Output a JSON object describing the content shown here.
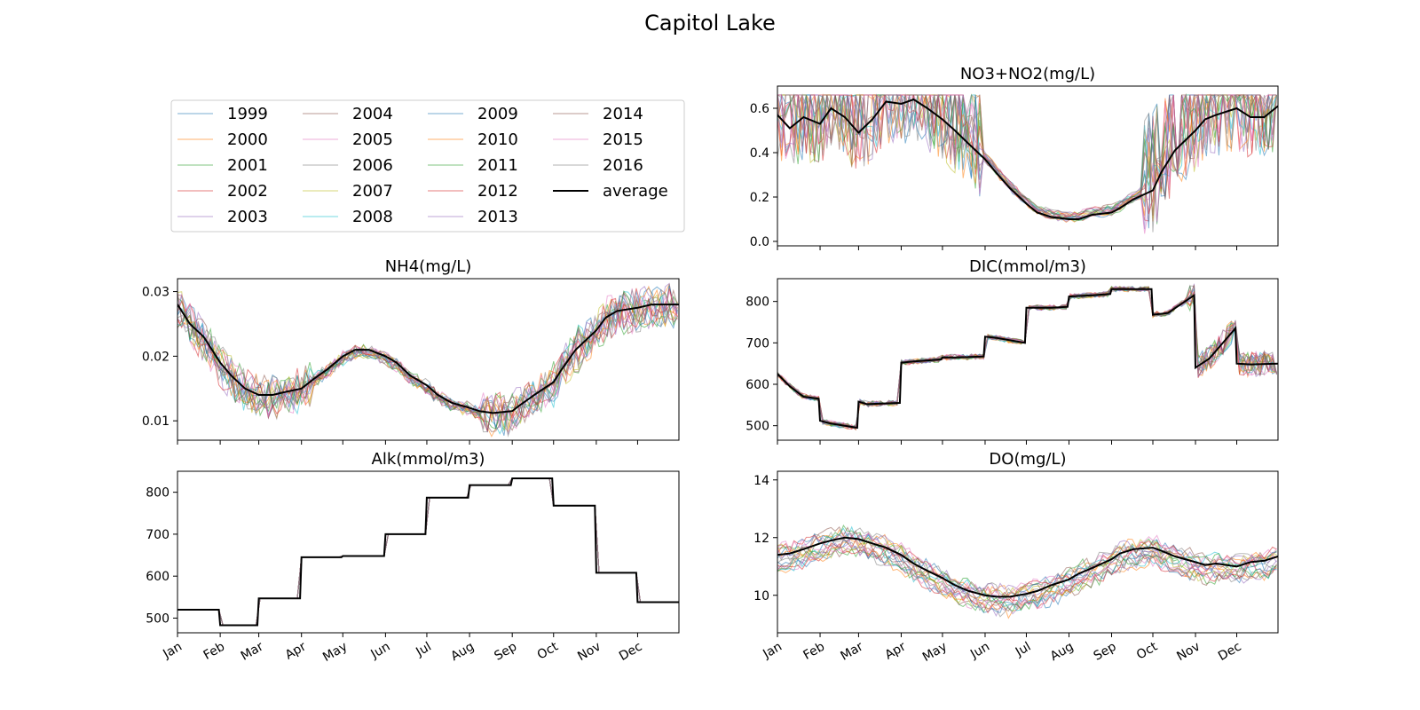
{
  "figure": {
    "title": "Capitol Lake"
  },
  "colors": {
    "years": [
      "#1f77b4",
      "#ff7f0e",
      "#2ca02c",
      "#d62728",
      "#9467bd",
      "#8c564b",
      "#e377c2",
      "#7f7f7f",
      "#bcbd22",
      "#17becf",
      "#1f77b4",
      "#ff7f0e",
      "#2ca02c",
      "#d62728",
      "#9467bd",
      "#8c564b",
      "#e377c2",
      "#7f7f7f"
    ],
    "average": "#000000"
  },
  "legend": {
    "entries": [
      "1999",
      "2000",
      "2001",
      "2002",
      "2003",
      "2004",
      "2005",
      "2006",
      "2007",
      "2008",
      "2009",
      "2010",
      "2011",
      "2012",
      "2013",
      "2014",
      "2015",
      "2016",
      "average"
    ],
    "columns": 4
  },
  "chart_data": [
    {
      "id": "no3",
      "type": "line",
      "title": "NO3+NO2(mg/L)",
      "xlabel": "",
      "ylabel": "",
      "ylim": [
        -0.02,
        0.7
      ],
      "yticks": [
        0.0,
        0.2,
        0.4,
        0.6
      ],
      "ytick_labels": [
        "0.0",
        "0.2",
        "0.4",
        "0.6"
      ],
      "xticks": [],
      "xtick_labels": [],
      "average": {
        "name": "average",
        "x": [
          1,
          10,
          20,
          32,
          40,
          50,
          60,
          70,
          80,
          91,
          100,
          110,
          121,
          130,
          140,
          152,
          160,
          170,
          182,
          190,
          200,
          213,
          220,
          230,
          244,
          250,
          260,
          274,
          280,
          290,
          305,
          312,
          320,
          335,
          345,
          355,
          365
        ],
        "y": [
          0.57,
          0.51,
          0.56,
          0.53,
          0.6,
          0.56,
          0.49,
          0.55,
          0.63,
          0.62,
          0.64,
          0.6,
          0.55,
          0.5,
          0.44,
          0.37,
          0.31,
          0.24,
          0.17,
          0.13,
          0.11,
          0.1,
          0.1,
          0.12,
          0.13,
          0.15,
          0.19,
          0.23,
          0.31,
          0.41,
          0.5,
          0.55,
          0.57,
          0.6,
          0.56,
          0.56,
          0.61
        ]
      }
    },
    {
      "id": "nh4",
      "type": "line",
      "title": "NH4(mg/L)",
      "xlabel": "",
      "ylabel": "",
      "ylim": [
        0.007,
        0.032
      ],
      "yticks": [
        0.01,
        0.02,
        0.03
      ],
      "ytick_labels": [
        "0.01",
        "0.02",
        "0.03"
      ],
      "xticks": [],
      "xtick_labels": [],
      "average": {
        "name": "average",
        "x": [
          1,
          10,
          20,
          32,
          40,
          50,
          60,
          70,
          80,
          91,
          100,
          110,
          121,
          130,
          140,
          152,
          160,
          170,
          182,
          190,
          200,
          213,
          220,
          230,
          244,
          250,
          260,
          274,
          280,
          290,
          305,
          312,
          320,
          335,
          345,
          355,
          365
        ],
        "y": [
          0.028,
          0.025,
          0.023,
          0.019,
          0.017,
          0.015,
          0.014,
          0.014,
          0.0145,
          0.015,
          0.0165,
          0.018,
          0.02,
          0.021,
          0.021,
          0.02,
          0.019,
          0.017,
          0.0155,
          0.014,
          0.0128,
          0.012,
          0.0115,
          0.0112,
          0.0115,
          0.0125,
          0.014,
          0.016,
          0.018,
          0.021,
          0.024,
          0.026,
          0.027,
          0.0275,
          0.028,
          0.028,
          0.028
        ]
      }
    },
    {
      "id": "dic",
      "type": "line",
      "title": "DIC(mmol/m3)",
      "xlabel": "",
      "ylabel": "",
      "ylim": [
        465,
        855
      ],
      "yticks": [
        500,
        600,
        700,
        800
      ],
      "ytick_labels": [
        "500",
        "600",
        "700",
        "800"
      ],
      "xticks": [],
      "xtick_labels": [],
      "average": {
        "name": "average",
        "x": [
          1,
          10,
          20,
          31,
          32,
          40,
          59,
          60,
          66,
          90,
          91,
          100,
          120,
          121,
          130,
          151,
          152,
          160,
          181,
          182,
          200,
          212,
          213,
          230,
          243,
          244,
          260,
          273,
          274,
          285,
          304,
          305,
          315,
          334,
          335,
          345,
          365
        ],
        "y": [
          625,
          595,
          570,
          565,
          512,
          505,
          495,
          558,
          552,
          555,
          652,
          655,
          660,
          665,
          665,
          667,
          715,
          712,
          700,
          785,
          785,
          787,
          812,
          815,
          818,
          830,
          830,
          830,
          768,
          772,
          815,
          640,
          662,
          735,
          650,
          648,
          650
        ]
      }
    },
    {
      "id": "alk",
      "type": "line",
      "title": "Alk(mmol/m3)",
      "xlabel": "",
      "ylabel": "",
      "ylim": [
        465,
        850
      ],
      "yticks": [
        500,
        600,
        700,
        800
      ],
      "ytick_labels": [
        "500",
        "600",
        "700",
        "800"
      ],
      "xticks": [
        1,
        32,
        60,
        91,
        121,
        152,
        182,
        213,
        244,
        274,
        305,
        335
      ],
      "xtick_labels": [
        "Jan",
        "Feb",
        "Mar",
        "Apr",
        "May",
        "Jun",
        "Jul",
        "Aug",
        "Sep",
        "Oct",
        "Nov",
        "Dec"
      ],
      "average": {
        "name": "average",
        "x": [
          1,
          31,
          32,
          59,
          60,
          90,
          91,
          120,
          121,
          151,
          152,
          181,
          182,
          212,
          213,
          243,
          244,
          273,
          274,
          304,
          305,
          334,
          335,
          365
        ],
        "y": [
          520,
          520,
          483,
          483,
          547,
          547,
          645,
          645,
          648,
          648,
          700,
          700,
          787,
          787,
          817,
          817,
          833,
          833,
          768,
          768,
          608,
          608,
          538,
          538
        ]
      }
    },
    {
      "id": "do",
      "type": "line",
      "title": "DO(mg/L)",
      "xlabel": "",
      "ylabel": "",
      "ylim": [
        8.7,
        14.3
      ],
      "yticks": [
        10,
        12,
        14
      ],
      "ytick_labels": [
        "10",
        "12",
        "14"
      ],
      "xticks": [
        1,
        32,
        60,
        91,
        121,
        152,
        182,
        213,
        244,
        274,
        305,
        335
      ],
      "xtick_labels": [
        "Jan",
        "Feb",
        "Mar",
        "Apr",
        "May",
        "Jun",
        "Jul",
        "Aug",
        "Sep",
        "Oct",
        "Nov",
        "Dec"
      ],
      "average": {
        "name": "average",
        "x": [
          1,
          10,
          20,
          32,
          40,
          50,
          60,
          70,
          80,
          91,
          100,
          110,
          121,
          130,
          140,
          152,
          160,
          170,
          182,
          190,
          200,
          213,
          220,
          230,
          244,
          250,
          260,
          274,
          280,
          290,
          305,
          312,
          320,
          335,
          345,
          355,
          365
        ],
        "y": [
          11.4,
          11.45,
          11.6,
          11.8,
          11.9,
          12.0,
          11.95,
          11.8,
          11.65,
          11.4,
          11.1,
          10.85,
          10.6,
          10.35,
          10.15,
          10.0,
          9.95,
          9.95,
          10.05,
          10.15,
          10.35,
          10.55,
          10.75,
          10.95,
          11.25,
          11.45,
          11.6,
          11.65,
          11.55,
          11.35,
          11.15,
          11.05,
          11.1,
          11.0,
          11.15,
          11.2,
          11.35
        ]
      }
    }
  ]
}
